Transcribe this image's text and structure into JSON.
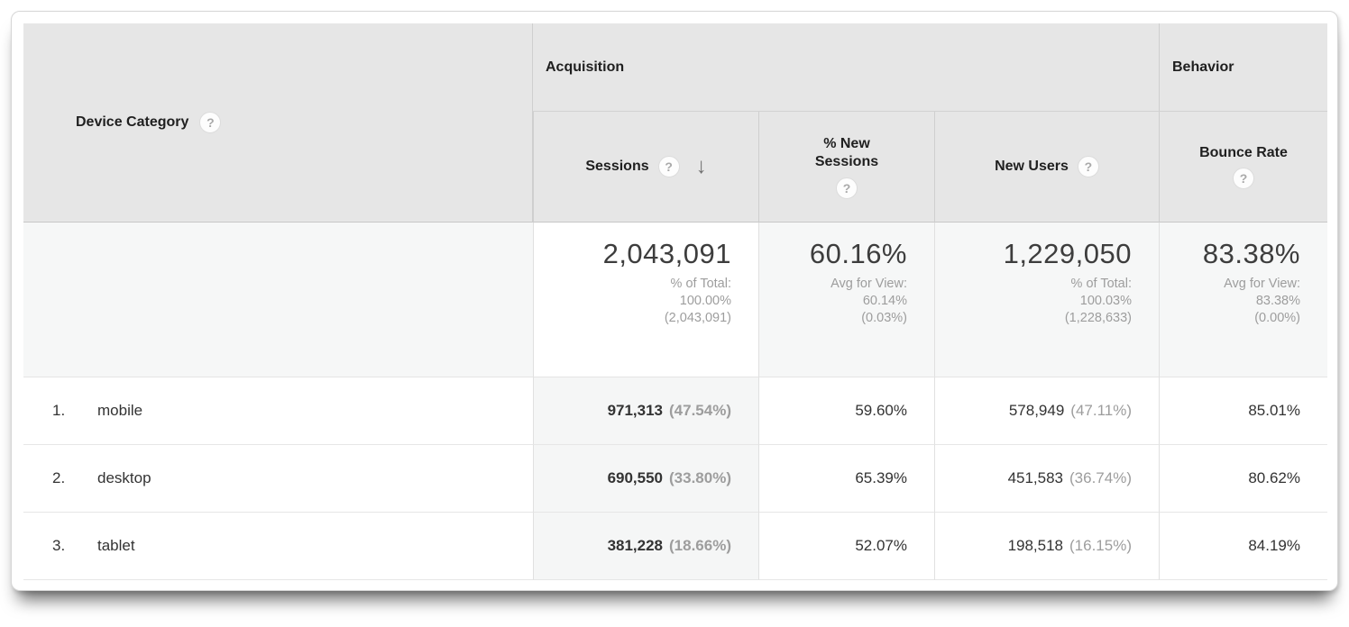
{
  "icons": {
    "help_glyph": "?",
    "sort_desc_glyph": "↓"
  },
  "table": {
    "dimension_header": "Device Category",
    "groups": {
      "acquisition": "Acquisition",
      "behavior": "Behavior"
    },
    "metric_headers": {
      "sessions": "Sessions",
      "new_sessions": "% New Sessions",
      "new_users": "New Users",
      "bounce_rate": "Bounce Rate"
    },
    "summary": {
      "sessions": {
        "value": "2,043,091",
        "sub1": "% of Total:",
        "sub2": "100.00%",
        "sub3": "(2,043,091)"
      },
      "new_sessions": {
        "value": "60.16%",
        "sub1": "Avg for View:",
        "sub2": "60.14%",
        "sub3": "(0.03%)"
      },
      "new_users": {
        "value": "1,229,050",
        "sub1": "% of Total:",
        "sub2": "100.03%",
        "sub3": "(1,228,633)"
      },
      "bounce_rate": {
        "value": "83.38%",
        "sub1": "Avg for View:",
        "sub2": "83.38%",
        "sub3": "(0.00%)"
      }
    },
    "rows": [
      {
        "index": "1.",
        "label": "mobile",
        "sessions": "971,313",
        "sessions_pct": "(47.54%)",
        "new_sessions": "59.60%",
        "new_users": "578,949",
        "new_users_pct": "(47.11%)",
        "bounce_rate": "85.01%"
      },
      {
        "index": "2.",
        "label": "desktop",
        "sessions": "690,550",
        "sessions_pct": "(33.80%)",
        "new_sessions": "65.39%",
        "new_users": "451,583",
        "new_users_pct": "(36.74%)",
        "bounce_rate": "80.62%"
      },
      {
        "index": "3.",
        "label": "tablet",
        "sessions": "381,228",
        "sessions_pct": "(18.66%)",
        "new_sessions": "52.07%",
        "new_users": "198,518",
        "new_users_pct": "(16.15%)",
        "bounce_rate": "84.19%"
      }
    ]
  },
  "colors": {
    "header_bg": "#e6e6e6",
    "sorted_column_bg": "#f5f6f6",
    "summary_row_bg": "#f6f7f7",
    "text_primary": "#333333",
    "text_secondary": "#9d9d9d"
  }
}
